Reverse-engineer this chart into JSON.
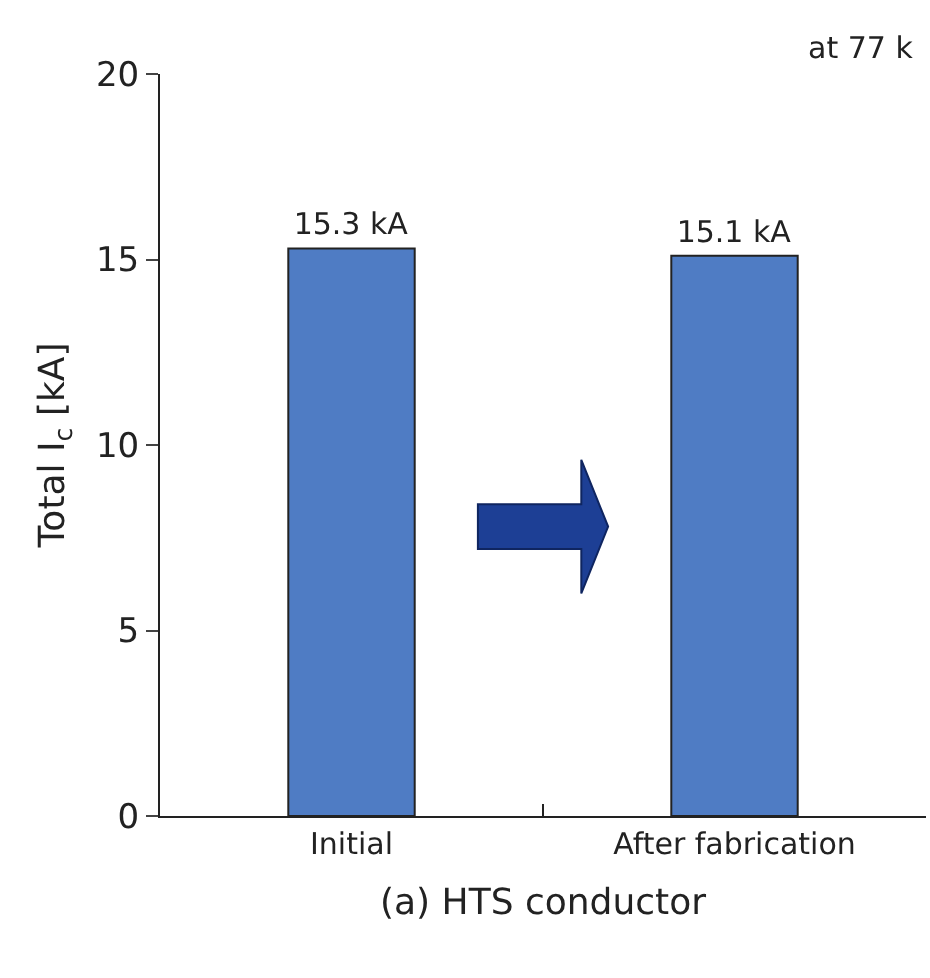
{
  "chart_data": {
    "type": "bar",
    "xlabel": "(a) HTS conductor",
    "ylabel": "Total I$_{c}$ [kA]",
    "categories": [
      "Initial",
      "After fabrication"
    ],
    "values": [
      15.3,
      15.1
    ],
    "value_labels": [
      "15.3 kA",
      "15.1 kA"
    ],
    "color": "#4f7cc4",
    "ylim": [
      0,
      20
    ],
    "yticks": [
      0,
      5,
      10,
      15,
      20
    ],
    "annotations": [
      "at 77 k"
    ]
  }
}
